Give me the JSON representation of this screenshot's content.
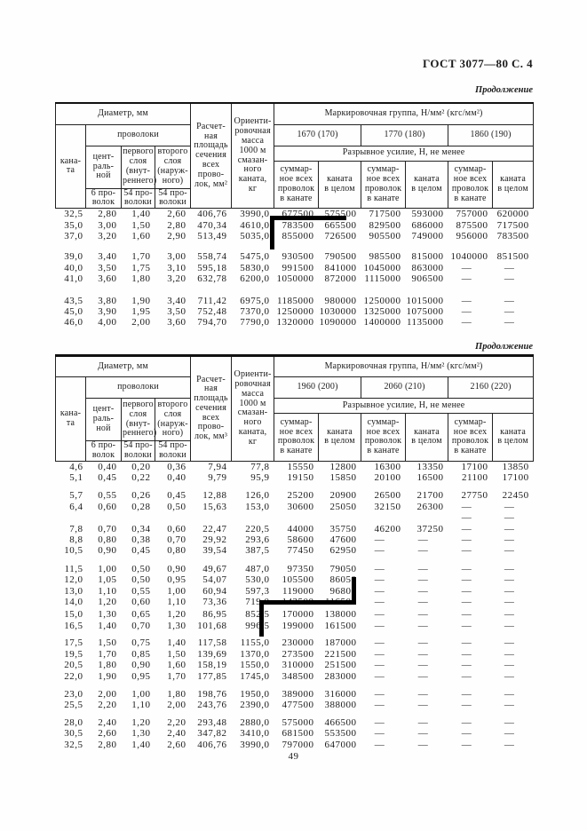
{
  "page": {
    "gost_header": "ГОСТ 3077—80 С. 4",
    "page_number": "49"
  },
  "tables": [
    {
      "continuation": "Продолжение",
      "header": {
        "diameter": "Диаметр, мм",
        "rope": "кана-\nта",
        "wires": "проволоки",
        "central": "цент-\nраль-\nной",
        "layer1": "первого\nслоя\n(внут-\nреннего)",
        "layer2": "второго\nслоя\n(наруж-\nного)",
        "central_count": "6 про-\nволок",
        "layer1_count": "54 про-\nволоки",
        "layer2_count": "54 про-\nволоки",
        "area": "Расчет-\nная\nплощадь\nсечения\nвсех\nпрово-\nлок, мм²",
        "mass": "Ориенти-\nровочная\nмасса\n1000 м\nсмазан-\nного\nканата,\nкг",
        "marking": "Маркировочная группа, Н/мм² (кгс/мм²)",
        "groups": [
          "1670 (170)",
          "1770 (180)",
          "1860 (190)"
        ],
        "breaking": "Разрывное усилие, Н, не менее",
        "sum_wires": "суммар-\nное всех\nпроволок\nв канате",
        "whole_rope": "каната\nв целом"
      },
      "row_groups": [
        [
          [
            "32,5",
            "2,80",
            "1,40",
            "2,60",
            "406,76",
            "3990,0",
            "677500",
            "575500",
            "717500",
            "593000",
            "757000",
            "620000"
          ],
          [
            "35,0",
            "3,00",
            "1,50",
            "2,80",
            "470,34",
            "4610,0",
            "783500",
            "665500",
            "829500",
            "686000",
            "875500",
            "717500"
          ],
          [
            "37,0",
            "3,20",
            "1,60",
            "2,90",
            "513,49",
            "5035,0",
            "855000",
            "726500",
            "905500",
            "749000",
            "956000",
            "783500"
          ]
        ],
        [
          [
            "39,0",
            "3,40",
            "1,70",
            "3,00",
            "558,74",
            "5475,0",
            "930500",
            "790500",
            "985500",
            "815000",
            "1040000",
            "851500"
          ],
          [
            "40,0",
            "3,50",
            "1,75",
            "3,10",
            "595,18",
            "5830,0",
            "991500",
            "841000",
            "1045000",
            "863000",
            "—",
            "—"
          ],
          [
            "41,0",
            "3,60",
            "1,80",
            "3,20",
            "632,78",
            "6200,0",
            "1050000",
            "872000",
            "1115000",
            "906500",
            "—",
            "—"
          ]
        ],
        [
          [
            "43,5",
            "3,80",
            "1,90",
            "3,40",
            "711,42",
            "6975,0",
            "1185000",
            "980000",
            "1250000",
            "1015000",
            "—",
            "—"
          ],
          [
            "45,0",
            "3,90",
            "1,95",
            "3,50",
            "752,48",
            "7370,0",
            "1250000",
            "1030000",
            "1325000",
            "1075000",
            "—",
            "—"
          ],
          [
            "46,0",
            "4,00",
            "2,00",
            "3,60",
            "794,70",
            "7790,0",
            "1320000",
            "1090000",
            "1400000",
            "1135000",
            "—",
            "—"
          ]
        ]
      ]
    },
    {
      "continuation": "Продолжение",
      "header": {
        "diameter": "Диаметр, мм",
        "rope": "кана-\nта",
        "wires": "проволоки",
        "central": "цент-\nраль-\nной",
        "layer1": "первого\nслоя\n(внут-\nреннего)",
        "layer2": "второго\nслоя\n(наруж-\nного)",
        "central_count": "6 про-\nволок",
        "layer1_count": "54 про-\nволоки",
        "layer2_count": "54 про-\nволоки",
        "area": "Расчет-\nная\nплощадь\nсечения\nвсех\nпрово-\nлок, мм³",
        "mass": "Ориенти-\nровочная\nмасса\n1000 м\nсмазан-\nного\nканата,\nкг",
        "marking": "Маркировочная группа, Н/мм² (кгс/мм²)",
        "groups": [
          "1960 (200)",
          "2060 (210)",
          "2160 (220)"
        ],
        "breaking": "Разрывное усилие, Н, не менее",
        "sum_wires": "суммар-\nное всех\nпроволок\nв канате",
        "whole_rope": "каната\nв целом"
      },
      "row_groups": [
        [
          [
            "4,6",
            "0,40",
            "0,20",
            "0,36",
            "7,94",
            "77,8",
            "15550",
            "12800",
            "16300",
            "13350",
            "17100",
            "13850"
          ],
          [
            "5,1",
            "0,45",
            "0,22",
            "0,40",
            "9,79",
            "95,9",
            "19150",
            "15850",
            "20100",
            "16500",
            "21100",
            "17100"
          ]
        ],
        [
          [
            "5,7",
            "0,55",
            "0,26",
            "0,45",
            "12,88",
            "126,0",
            "25200",
            "20900",
            "26500",
            "21700",
            "27750",
            "22450"
          ],
          [
            "6,4",
            "0,60",
            "0,28",
            "0,50",
            "15,63",
            "153,0",
            "30600",
            "25050",
            "32150",
            "26300",
            "—",
            "—"
          ],
          [
            "",
            "",
            "",
            "",
            "",
            "",
            "",
            "",
            "",
            "",
            "—",
            "—"
          ]
        ],
        [
          [
            "7,8",
            "0,70",
            "0,34",
            "0,60",
            "22,47",
            "220,5",
            "44000",
            "35750",
            "46200",
            "37250",
            "—",
            "—"
          ],
          [
            "8,8",
            "0,80",
            "0,38",
            "0,70",
            "29,92",
            "293,6",
            "58600",
            "47600",
            "—",
            "—",
            "—",
            "—"
          ],
          [
            "10,5",
            "0,90",
            "0,45",
            "0,80",
            "39,54",
            "387,5",
            "77450",
            "62950",
            "—",
            "—",
            "—",
            "—"
          ]
        ],
        [
          [
            "11,5",
            "1,00",
            "0,50",
            "0,90",
            "49,67",
            "487,0",
            "97350",
            "79050",
            "—",
            "—",
            "—",
            "—"
          ],
          [
            "12,0",
            "1,05",
            "0,50",
            "0,95",
            "54,07",
            "530,0",
            "105500",
            "86050",
            "—",
            "—",
            "—",
            "—"
          ],
          [
            "13,0",
            "1,10",
            "0,55",
            "1,00",
            "60,94",
            "597,3",
            "119000",
            "96800",
            "—",
            "—",
            "—",
            "—"
          ],
          [
            "14,0",
            "1,20",
            "0,60",
            "1,10",
            "73,36",
            "719,0",
            "143500",
            "116500",
            "—",
            "—",
            "—",
            "—"
          ]
        ],
        [
          [
            "15,0",
            "1,30",
            "0,65",
            "1,20",
            "86,95",
            "852,5",
            "170000",
            "138000",
            "—",
            "—",
            "—",
            "—"
          ],
          [
            "16,5",
            "1,40",
            "0,70",
            "1,30",
            "101,68",
            "996,5",
            "199000",
            "161500",
            "—",
            "—",
            "—",
            "—"
          ]
        ],
        [
          [
            "17,5",
            "1,50",
            "0,75",
            "1,40",
            "117,58",
            "1155,0",
            "230000",
            "187000",
            "—",
            "—",
            "—",
            "—"
          ],
          [
            "19,5",
            "1,70",
            "0,85",
            "1,50",
            "139,69",
            "1370,0",
            "273500",
            "221500",
            "—",
            "—",
            "—",
            "—"
          ],
          [
            "20,5",
            "1,80",
            "0,90",
            "1,60",
            "158,19",
            "1550,0",
            "310000",
            "251500",
            "—",
            "—",
            "—",
            "—"
          ],
          [
            "22,0",
            "1,90",
            "0,95",
            "1,70",
            "177,85",
            "1745,0",
            "348500",
            "283000",
            "—",
            "—",
            "—",
            "—"
          ]
        ],
        [
          [
            "23,0",
            "2,00",
            "1,00",
            "1,80",
            "198,76",
            "1950,0",
            "389000",
            "316000",
            "—",
            "—",
            "—",
            "—"
          ],
          [
            "25,5",
            "2,20",
            "1,10",
            "2,00",
            "243,76",
            "2390,0",
            "477500",
            "388000",
            "—",
            "—",
            "—",
            "—"
          ]
        ],
        [
          [
            "28,0",
            "2,40",
            "1,20",
            "2,20",
            "293,48",
            "2880,0",
            "575000",
            "466500",
            "—",
            "—",
            "—",
            "—"
          ],
          [
            "30,5",
            "2,60",
            "1,30",
            "2,40",
            "347,82",
            "3410,0",
            "681500",
            "553500",
            "—",
            "—",
            "—",
            "—"
          ],
          [
            "32,5",
            "2,80",
            "1,40",
            "2,60",
            "406,76",
            "3990,0",
            "797000",
            "647000",
            "—",
            "—",
            "—",
            "—"
          ]
        ]
      ]
    }
  ]
}
